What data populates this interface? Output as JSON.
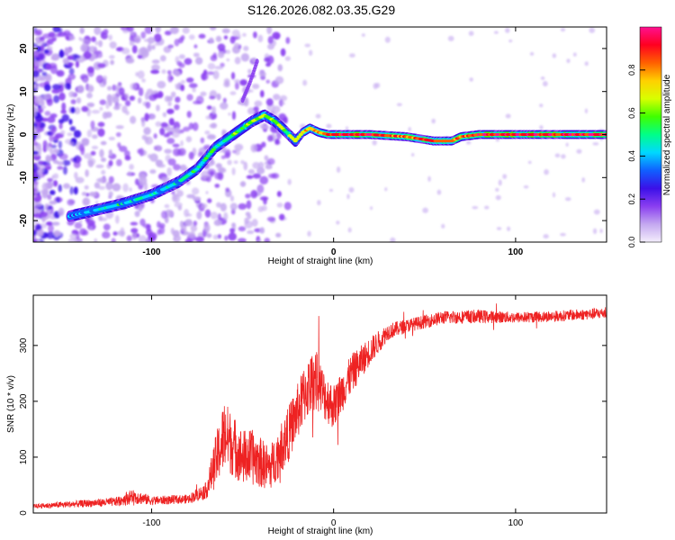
{
  "title": "S126.2026.082.03.35.G29",
  "chart_data": [
    {
      "type": "heatmap",
      "name": "spectrogram",
      "xlabel": "Height of straight line (km)",
      "ylabel": "Frequency (Hz)",
      "xlim": [
        -165,
        150
      ],
      "ylim": [
        -25,
        25
      ],
      "xticks": [
        -100,
        0,
        100
      ],
      "yticks": [
        -20,
        -10,
        0,
        10,
        20
      ],
      "colorbar": {
        "label": "Normalized spectral amplitude",
        "range": [
          0,
          1
        ],
        "ticks": [
          0.0,
          0.2,
          0.4,
          0.6,
          0.8
        ],
        "tick_labels": [
          "0.0",
          "0.2",
          "0.4",
          "0.6",
          "0.8"
        ],
        "colors": [
          "#f4eefc",
          "#c4a8f0",
          "#8a3ef0",
          "#3b10e8",
          "#1060ff",
          "#00d8ff",
          "#00ff88",
          "#40ff00",
          "#d8ff00",
          "#ffd000",
          "#ff6000",
          "#ff0020",
          "#ff1090"
        ]
      },
      "ridge": {
        "x": [
          -145,
          -130,
          -115,
          -100,
          -85,
          -75,
          -65,
          -55,
          -45,
          -38,
          -32,
          -27,
          -21,
          -17,
          -13,
          -8,
          -3,
          5,
          20,
          40,
          55,
          65,
          70,
          80,
          100,
          120,
          150
        ],
        "y": [
          -19,
          -17.5,
          -16,
          -14,
          -11,
          -8,
          -3,
          0,
          3,
          4.5,
          3,
          1,
          -1.5,
          0.5,
          1.5,
          0.5,
          0,
          0,
          0,
          -0.5,
          -1.5,
          -1.5,
          -0.5,
          0,
          0,
          0,
          0
        ],
        "amp": [
          0.35,
          0.45,
          0.45,
          0.45,
          0.45,
          0.5,
          0.5,
          0.55,
          0.6,
          0.65,
          0.6,
          0.6,
          0.7,
          0.7,
          0.75,
          0.8,
          0.85,
          0.9,
          0.9,
          0.85,
          0.85,
          0.85,
          0.85,
          0.9,
          0.92,
          0.92,
          0.9
        ]
      },
      "faint_branch": {
        "x": [
          -50,
          -46,
          -42
        ],
        "y": [
          8,
          12,
          17
        ]
      }
    },
    {
      "type": "line",
      "name": "snr",
      "xlabel": "Height of straight line (km)",
      "ylabel": "SNR (10 * v/v)",
      "xlim": [
        -165,
        150
      ],
      "ylim": [
        0,
        390
      ],
      "xticks": [
        -100,
        0,
        100
      ],
      "yticks": [
        0,
        100,
        200,
        300
      ],
      "color": "#ee2222",
      "envelope": {
        "x": [
          -165,
          -120,
          -110,
          -100,
          -80,
          -70,
          -65,
          -60,
          -55,
          -50,
          -45,
          -40,
          -35,
          -30,
          -25,
          -20,
          -15,
          -10,
          -5,
          0,
          10,
          20,
          30,
          40,
          60,
          80,
          100,
          120,
          150
        ],
        "y": [
          12,
          20,
          30,
          22,
          25,
          40,
          90,
          140,
          120,
          100,
          100,
          90,
          80,
          110,
          140,
          180,
          220,
          240,
          210,
          190,
          250,
          290,
          325,
          335,
          350,
          352,
          350,
          352,
          358
        ],
        "noise": [
          4,
          8,
          14,
          8,
          8,
          15,
          45,
          65,
          55,
          50,
          50,
          45,
          40,
          45,
          50,
          50,
          55,
          55,
          45,
          40,
          35,
          25,
          15,
          12,
          12,
          12,
          10,
          10,
          10
        ]
      }
    }
  ]
}
